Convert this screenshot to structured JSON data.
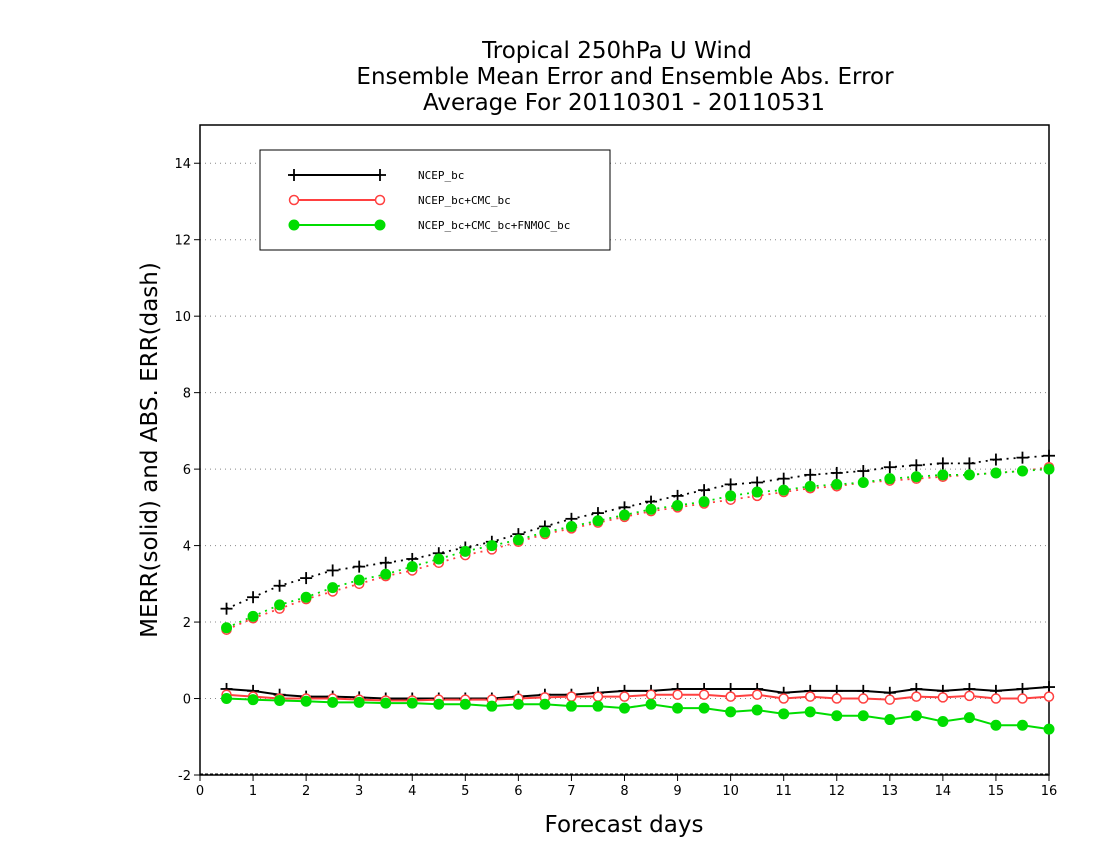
{
  "chart_data": {
    "type": "line",
    "title": [
      "Tropical 250hPa U Wind",
      "Ensemble Mean Error and Ensemble Abs. Error",
      "Average For 20110301 - 20110531"
    ],
    "xlabel": "Forecast days",
    "ylabel": "MERR(solid) and ABS. ERR(dash)",
    "xlim": [
      0,
      16
    ],
    "ylim": [
      -2,
      15
    ],
    "xticks": [
      "0",
      "1",
      "2",
      "3",
      "4",
      "5",
      "6",
      "7",
      "8",
      "9",
      "10",
      "11",
      "12",
      "13",
      "14",
      "15",
      "16"
    ],
    "yticks": [
      "-2",
      "0",
      "2",
      "4",
      "6",
      "8",
      "10",
      "12",
      "14"
    ],
    "grid": "horizontal dotted",
    "legend_position": "top-left",
    "x": [
      0.5,
      1,
      1.5,
      2,
      2.5,
      3,
      3.5,
      4,
      4.5,
      5,
      5.5,
      6,
      6.5,
      7,
      7.5,
      8,
      8.5,
      9,
      9.5,
      10,
      10.5,
      11,
      11.5,
      12,
      12.5,
      13,
      13.5,
      14,
      14.5,
      15,
      15.5,
      16
    ],
    "series": [
      {
        "name": "NCEP_bc",
        "color": "#000000",
        "marker": "plus",
        "merr": [
          0.25,
          0.2,
          0.1,
          0.05,
          0.05,
          0.03,
          0.0,
          0.0,
          0.0,
          0.0,
          0.0,
          0.05,
          0.1,
          0.1,
          0.15,
          0.2,
          0.2,
          0.25,
          0.25,
          0.25,
          0.25,
          0.15,
          0.2,
          0.2,
          0.2,
          0.15,
          0.25,
          0.2,
          0.25,
          0.2,
          0.25,
          0.3
        ],
        "abs_err": [
          2.35,
          2.65,
          2.95,
          3.15,
          3.35,
          3.45,
          3.55,
          3.65,
          3.8,
          3.95,
          4.1,
          4.3,
          4.5,
          4.7,
          4.85,
          5.0,
          5.15,
          5.3,
          5.45,
          5.6,
          5.65,
          5.75,
          5.85,
          5.9,
          5.95,
          6.05,
          6.1,
          6.15,
          6.15,
          6.25,
          6.3,
          6.35
        ]
      },
      {
        "name": "NCEP_bc+CMC_bc",
        "color": "#ff4040",
        "marker": "open-circle",
        "merr": [
          0.1,
          0.05,
          0.0,
          0.0,
          0.0,
          -0.03,
          -0.05,
          -0.05,
          -0.03,
          -0.03,
          -0.03,
          0.0,
          0.03,
          0.05,
          0.05,
          0.05,
          0.1,
          0.1,
          0.1,
          0.05,
          0.1,
          0.0,
          0.05,
          0.0,
          0.0,
          -0.03,
          0.05,
          0.03,
          0.07,
          0.0,
          0.0,
          0.05
        ],
        "abs_err": [
          1.8,
          2.1,
          2.35,
          2.6,
          2.8,
          3.0,
          3.2,
          3.35,
          3.55,
          3.75,
          3.9,
          4.1,
          4.3,
          4.45,
          4.6,
          4.75,
          4.9,
          5.0,
          5.1,
          5.2,
          5.3,
          5.4,
          5.5,
          5.55,
          5.65,
          5.7,
          5.75,
          5.8,
          5.85,
          5.9,
          5.95,
          6.05
        ]
      },
      {
        "name": "NCEP_bc+CMC_bc+FNMOC_bc",
        "color": "#00dd00",
        "marker": "filled-circle",
        "merr": [
          0.0,
          -0.03,
          -0.05,
          -0.07,
          -0.1,
          -0.1,
          -0.12,
          -0.12,
          -0.15,
          -0.15,
          -0.2,
          -0.15,
          -0.15,
          -0.2,
          -0.2,
          -0.25,
          -0.15,
          -0.25,
          -0.25,
          -0.35,
          -0.3,
          -0.4,
          -0.35,
          -0.45,
          -0.45,
          -0.55,
          -0.45,
          -0.6,
          -0.5,
          -0.7,
          -0.7,
          -0.8
        ],
        "abs_err": [
          1.85,
          2.15,
          2.45,
          2.65,
          2.9,
          3.1,
          3.25,
          3.45,
          3.65,
          3.85,
          4.0,
          4.15,
          4.35,
          4.5,
          4.65,
          4.8,
          4.95,
          5.05,
          5.15,
          5.3,
          5.4,
          5.45,
          5.55,
          5.6,
          5.65,
          5.75,
          5.8,
          5.85,
          5.85,
          5.9,
          5.95,
          6.0
        ]
      }
    ]
  }
}
